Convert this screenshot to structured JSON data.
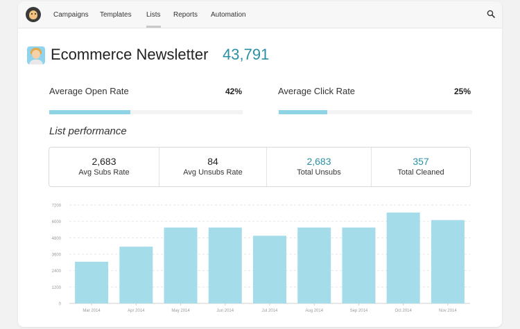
{
  "nav": {
    "items": [
      {
        "label": "Campaigns"
      },
      {
        "label": "Templates"
      },
      {
        "label": "Lists"
      },
      {
        "label": "Reports"
      },
      {
        "label": "Automation"
      }
    ],
    "active": "Lists"
  },
  "header": {
    "title": "Ecommerce Newsletter",
    "count": "43,791"
  },
  "rates": {
    "open": {
      "label": "Average Open Rate",
      "value": "42%",
      "fraction": 0.42
    },
    "click": {
      "label": "Average Click Rate",
      "value": "25%",
      "fraction": 0.25
    }
  },
  "section_heading": "List performance",
  "stats": [
    {
      "value": "2,683",
      "label": "Avg Subs Rate",
      "accent": false
    },
    {
      "value": "84",
      "label": "Avg Unsubs Rate",
      "accent": false
    },
    {
      "value": "2,683",
      "label": "Total Unsubs",
      "accent": true
    },
    {
      "value": "357",
      "label": "Total Cleaned",
      "accent": true
    }
  ],
  "colors": {
    "accent": "#2a8fa3",
    "bar": "#a5dcea",
    "rate_fill": "#8fd3e6"
  },
  "icons": {
    "logo": "mailchimp-logo",
    "search": "search-icon",
    "avatar": "list-avatar"
  },
  "chart_data": {
    "type": "bar",
    "categories": [
      "Mar 2014",
      "Apr 2014",
      "May 2014",
      "Jun 2014",
      "Jul 2014",
      "Aug 2014",
      "Sep 2014",
      "Oct 2014",
      "Nov 2014"
    ],
    "values": [
      3050,
      4150,
      5550,
      5550,
      4950,
      5550,
      5550,
      6650,
      6100
    ],
    "yticks": [
      0,
      1200,
      2400,
      3600,
      4800,
      6000,
      7200
    ],
    "ylim": [
      0,
      7200
    ],
    "grid": true,
    "title": "",
    "xlabel": "",
    "ylabel": ""
  }
}
